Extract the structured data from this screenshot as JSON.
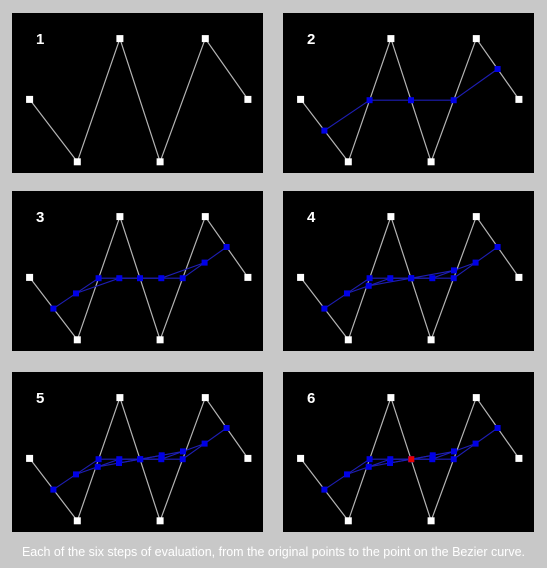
{
  "caption": "Each of the six steps of evaluation, from the original points to the point on the Bezier curve.",
  "colors": {
    "background": "#c8c8c8",
    "panel": "#000000",
    "control_point": "#ffffff",
    "control_polygon": "#b4b4b4",
    "intermediate_point": "#0000e6",
    "intermediate_line": "#1e1eb4",
    "curve_point": "#e60000"
  },
  "control_points": [
    [
      0.07,
      0.54
    ],
    [
      0.26,
      0.93
    ],
    [
      0.43,
      0.16
    ],
    [
      0.59,
      0.93
    ],
    [
      0.77,
      0.16
    ],
    [
      0.94,
      0.54
    ]
  ],
  "parameter_t": 0.5,
  "panels": [
    {
      "label": "1",
      "levels_shown": 1
    },
    {
      "label": "2",
      "levels_shown": 2
    },
    {
      "label": "3",
      "levels_shown": 3
    },
    {
      "label": "4",
      "levels_shown": 4
    },
    {
      "label": "5",
      "levels_shown": 5
    },
    {
      "label": "6",
      "levels_shown": 6
    }
  ]
}
